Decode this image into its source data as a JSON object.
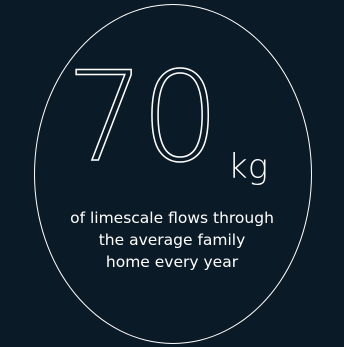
{
  "stat": {
    "value": "70",
    "unit": "kg",
    "caption_lines": [
      "of limescale flows through",
      "the average family",
      "home every year"
    ]
  },
  "colors": {
    "background": "#0b1a27",
    "foreground": "#ffffff"
  }
}
